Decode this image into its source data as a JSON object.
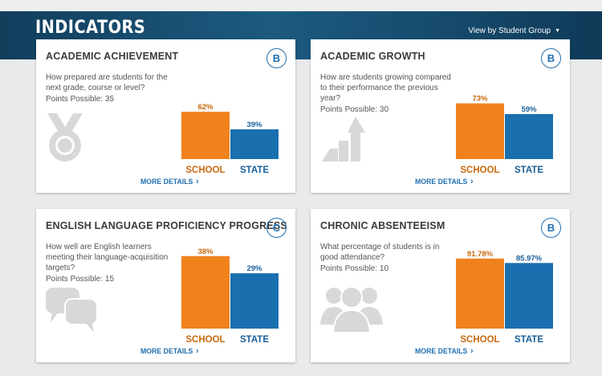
{
  "header": {
    "title": "INDICATORS",
    "view_toggle": "View by Student Group"
  },
  "colors": {
    "school": "#f0821e",
    "state": "#1a6faf",
    "accent": "#1f6fb0",
    "icon": "#d8d8d8"
  },
  "cards": [
    {
      "title": "ACADEMIC ACHIEVEMENT",
      "grade": "B",
      "question": "How prepared are students for the next grade, course or level?",
      "points": "Points Possible: 35",
      "icon": "medal-icon",
      "more": "MORE DETAILS"
    },
    {
      "title": "ACADEMIC GROWTH",
      "grade": "B",
      "question": "How are students growing compared to their performance the previous year?",
      "points": "Points Possible: 30",
      "icon": "growth-arrow-icon",
      "more": "MORE DETAILS"
    },
    {
      "title": "ENGLISH LANGUAGE PROFICIENCY PROGRESS",
      "grade": "C",
      "question": "How well are English learners meeting their language-acquisition targets?",
      "points": "Points Possible: 15",
      "icon": "speech-bubbles-icon",
      "more": "MORE DETAILS"
    },
    {
      "title": "CHRONIC ABSENTEEISM",
      "grade": "B",
      "question": "What percentage of students is in good attendance?",
      "points": "Points Possible: 10",
      "icon": "people-icon",
      "more": "MORE DETAILS"
    }
  ],
  "chart_data": [
    {
      "type": "bar",
      "categories": [
        "SCHOOL",
        "STATE"
      ],
      "values": [
        62,
        39
      ],
      "labels": [
        "62%",
        "39%"
      ],
      "ylim": [
        0,
        100
      ]
    },
    {
      "type": "bar",
      "categories": [
        "SCHOOL",
        "STATE"
      ],
      "values": [
        73,
        59
      ],
      "labels": [
        "73%",
        "59%"
      ],
      "ylim": [
        0,
        100
      ]
    },
    {
      "type": "bar",
      "categories": [
        "SCHOOL",
        "STATE"
      ],
      "values": [
        38,
        29
      ],
      "labels": [
        "38%",
        "29%"
      ],
      "ylim": [
        0,
        40
      ]
    },
    {
      "type": "bar",
      "categories": [
        "SCHOOL",
        "STATE"
      ],
      "values": [
        91.78,
        85.97
      ],
      "labels": [
        "91.78%",
        "85.97%"
      ],
      "ylim": [
        0,
        100
      ]
    }
  ]
}
